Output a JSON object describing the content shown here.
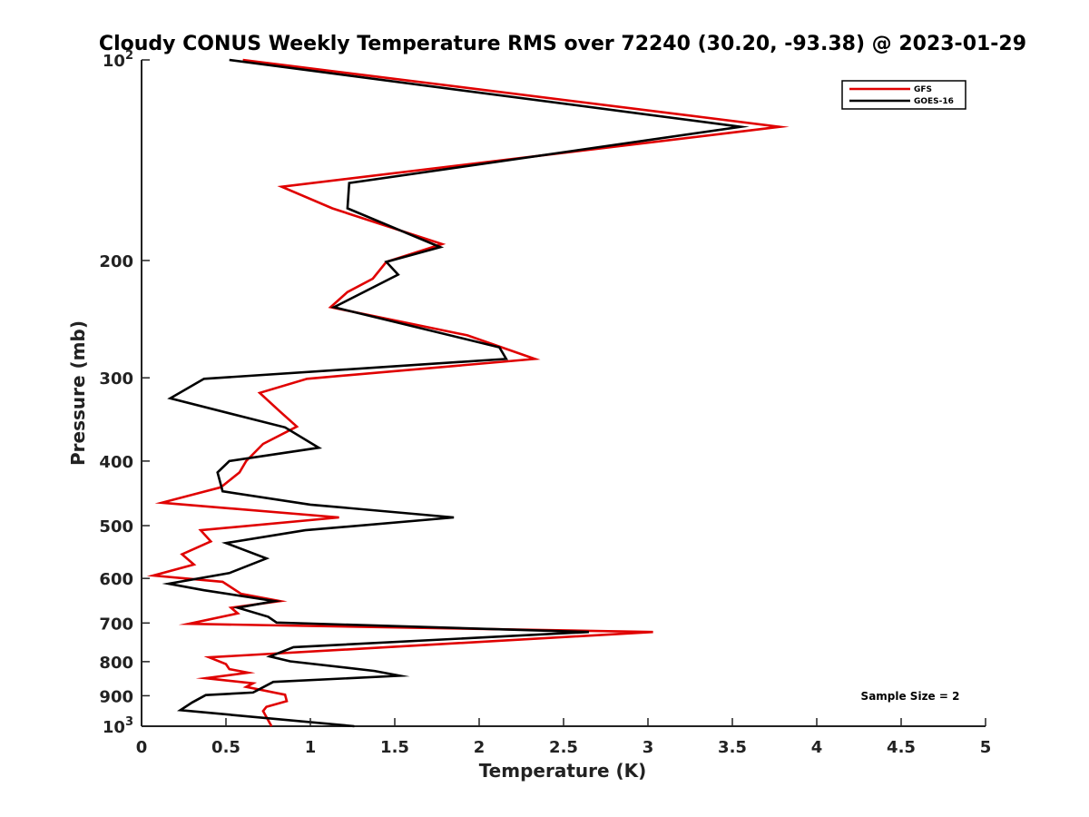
{
  "chart_data": {
    "type": "line",
    "title": "Cloudy CONUS Weekly Temperature RMS over 72240 (30.20, -93.38) @ 2023-01-29",
    "xlabel": "Temperature (K)",
    "ylabel": "Pressure (mb)",
    "xlim": [
      0,
      5
    ],
    "ylim": [
      100,
      1000
    ],
    "yscale": "log",
    "yreversed": true,
    "x_ticks": [
      0,
      0.5,
      1,
      1.5,
      2,
      2.5,
      3,
      3.5,
      4,
      4.5,
      5
    ],
    "x_tick_labels": [
      "0",
      "0.5",
      "1",
      "1.5",
      "2",
      "2.5",
      "3",
      "3.5",
      "4",
      "4.5",
      "5"
    ],
    "y_ticks": [
      100,
      200,
      300,
      400,
      500,
      600,
      700,
      800,
      900,
      1000
    ],
    "y_tick_labels": [
      {
        "base": "10",
        "exp": "2"
      },
      {
        "base": "200",
        "exp": ""
      },
      {
        "base": "300",
        "exp": ""
      },
      {
        "base": "400",
        "exp": ""
      },
      {
        "base": "500",
        "exp": ""
      },
      {
        "base": "600",
        "exp": ""
      },
      {
        "base": "700",
        "exp": ""
      },
      {
        "base": "800",
        "exp": ""
      },
      {
        "base": "900",
        "exp": ""
      },
      {
        "base": "10",
        "exp": "3"
      }
    ],
    "grid": false,
    "legend_position": "top-right",
    "annotation": "Sample Size = 2",
    "series": [
      {
        "name": "GFS",
        "color": "#e00000",
        "points": [
          [
            0.6,
            100
          ],
          [
            3.78,
            126
          ],
          [
            0.83,
            155
          ],
          [
            1.13,
            167
          ],
          [
            1.78,
            189
          ],
          [
            1.45,
            201
          ],
          [
            1.37,
            213
          ],
          [
            1.22,
            223
          ],
          [
            1.12,
            235
          ],
          [
            1.93,
            259
          ],
          [
            2.33,
            281
          ],
          [
            0.98,
            301
          ],
          [
            0.7,
            316
          ],
          [
            0.82,
            337
          ],
          [
            0.92,
            355
          ],
          [
            0.72,
            377
          ],
          [
            0.62,
            400
          ],
          [
            0.58,
            416
          ],
          [
            0.47,
            438
          ],
          [
            0.12,
            462
          ],
          [
            1.17,
            486
          ],
          [
            0.35,
            508
          ],
          [
            0.41,
            528
          ],
          [
            0.24,
            552
          ],
          [
            0.31,
            572
          ],
          [
            0.07,
            594
          ],
          [
            0.48,
            607
          ],
          [
            0.59,
            633
          ],
          [
            0.82,
            649
          ],
          [
            0.53,
            664
          ],
          [
            0.57,
            677
          ],
          [
            0.28,
            702
          ],
          [
            3.03,
            722
          ],
          [
            0.4,
            788
          ],
          [
            0.5,
            807
          ],
          [
            0.52,
            821
          ],
          [
            0.63,
            831
          ],
          [
            0.38,
            847
          ],
          [
            0.66,
            862
          ],
          [
            0.62,
            873
          ],
          [
            0.85,
            897
          ],
          [
            0.86,
            917
          ],
          [
            0.74,
            935
          ],
          [
            0.72,
            949
          ],
          [
            0.77,
            1000
          ]
        ]
      },
      {
        "name": "GOES-16",
        "color": "#000000",
        "points": [
          [
            0.52,
            100
          ],
          [
            3.55,
            126
          ],
          [
            1.23,
            153
          ],
          [
            1.22,
            167
          ],
          [
            1.77,
            191
          ],
          [
            1.45,
            201
          ],
          [
            1.52,
            210
          ],
          [
            1.14,
            235
          ],
          [
            2.12,
            270
          ],
          [
            2.16,
            281
          ],
          [
            0.37,
            301
          ],
          [
            0.17,
            322
          ],
          [
            0.85,
            356
          ],
          [
            1.05,
            382
          ],
          [
            0.52,
            400
          ],
          [
            0.45,
            416
          ],
          [
            0.48,
            444
          ],
          [
            1.0,
            465
          ],
          [
            1.85,
            486
          ],
          [
            0.97,
            508
          ],
          [
            0.5,
            531
          ],
          [
            0.74,
            560
          ],
          [
            0.52,
            589
          ],
          [
            0.16,
            611
          ],
          [
            0.37,
            625
          ],
          [
            0.79,
            649
          ],
          [
            0.57,
            664
          ],
          [
            0.75,
            685
          ],
          [
            0.8,
            699
          ],
          [
            2.65,
            722
          ],
          [
            0.9,
            761
          ],
          [
            0.76,
            786
          ],
          [
            0.88,
            799
          ],
          [
            1.38,
            826
          ],
          [
            1.53,
            840
          ],
          [
            0.78,
            858
          ],
          [
            0.66,
            890
          ],
          [
            0.38,
            898
          ],
          [
            0.3,
            921
          ],
          [
            0.23,
            946
          ],
          [
            1.26,
            1000
          ]
        ]
      }
    ]
  }
}
